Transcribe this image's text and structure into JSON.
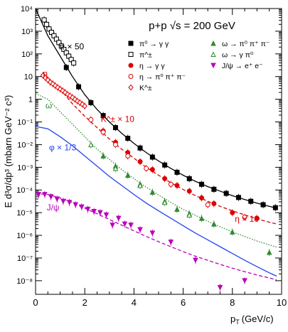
{
  "chart_data": {
    "type": "scatter",
    "title": "p+p √s = 200 GeV",
    "xlabel": "p_T (GeV/c)",
    "xlabel_main": "p",
    "xlabel_sub": "T",
    "xlabel_unit": "(GeV/c)",
    "ylabel": "E d³σ/dp³ (mbarn GeV⁻² c³)",
    "xlim": [
      0,
      10
    ],
    "ylim_log10": [
      -8.6,
      4
    ],
    "yscale": "log",
    "grid": false,
    "legend_position": "top-right",
    "x_ticks": [
      0,
      2,
      4,
      6,
      8,
      10
    ],
    "x_tick_labels": [
      "0",
      "2",
      "4",
      "6",
      "8",
      "10"
    ],
    "y_ticks_log10": [
      -8,
      -7,
      -6,
      -5,
      -4,
      -3,
      -2,
      -1,
      0,
      1,
      2,
      3,
      4
    ],
    "y_tick_labels": [
      "10⁻⁸",
      "10⁻⁷",
      "10⁻⁶",
      "10⁻⁵",
      "10⁻⁴",
      "10⁻³",
      "10⁻²",
      "10⁻¹",
      "1",
      "10",
      "10²",
      "10³",
      "10⁴"
    ],
    "legend": [
      {
        "label": "π⁰ → γ γ",
        "color": "#000000",
        "marker": "square-filled"
      },
      {
        "label": "π^±",
        "color": "#000000",
        "marker": "square-open"
      },
      {
        "label": "η → γ γ",
        "color": "#dd0000",
        "marker": "circle-filled"
      },
      {
        "label": "η → π⁰ π⁺ π⁻",
        "color": "#dd0000",
        "marker": "circle-open"
      },
      {
        "label": "K^±",
        "color": "#dd0000",
        "marker": "diamond-open"
      },
      {
        "label": "ω → π⁰ π⁺ π⁻",
        "color": "#2e8b2e",
        "marker": "triangle-filled"
      },
      {
        "label": "ω → γ π⁰",
        "color": "#2e8b2e",
        "marker": "triangle-open"
      },
      {
        "label": "J/ψ → e⁺ e⁻",
        "color": "#bb00bb",
        "marker": "triangle-down-filled"
      }
    ],
    "annotations": [
      {
        "text": "π × 50",
        "color": "#000000",
        "x": 0.95,
        "y_log10": 2.2
      },
      {
        "text": "η",
        "color": "#dd0000",
        "x": 0.3,
        "y_log10": 1.0
      },
      {
        "text": "ω",
        "color": "#2e8b2e",
        "x": 0.4,
        "y_log10": -0.4
      },
      {
        "text": "K^± × 10",
        "color": "#dd0000",
        "x": 2.65,
        "y_log10": -1.0
      },
      {
        "text": "φ × 1/3",
        "color": "#2244ee",
        "x": 0.55,
        "y_log10": -2.25
      },
      {
        "text": "J/ψ",
        "color": "#bb00bb",
        "x": 0.45,
        "y_log10": -4.9
      },
      {
        "text": "η × 10",
        "color": "#dd0000",
        "x": 8.1,
        "y_log10": -5.4
      }
    ],
    "curves": [
      {
        "name": "pi",
        "color": "#000000",
        "style": "solid",
        "x": [
          0,
          0.5,
          1,
          1.5,
          2,
          2.5,
          3,
          3.5,
          4,
          4.5,
          5,
          5.5,
          6,
          6.5,
          7,
          7.5,
          8,
          8.5,
          9,
          9.5,
          9.8
        ],
        "y_log10": [
          4,
          2.8,
          1.9,
          1.0,
          0.2,
          -0.45,
          -1.0,
          -1.5,
          -1.95,
          -2.35,
          -2.72,
          -3.05,
          -3.35,
          -3.62,
          -3.85,
          -4.05,
          -4.25,
          -4.42,
          -4.58,
          -4.72,
          -4.8
        ]
      },
      {
        "name": "eta",
        "color": "#dd0000",
        "style": "dashed",
        "x": [
          0.3,
          1,
          1.5,
          2,
          2.5,
          3,
          3.5,
          4,
          4.5,
          5,
          5.5,
          6,
          6.5,
          7,
          7.5,
          8,
          8.5,
          9,
          9.5,
          9.8
        ],
        "y_log10": [
          1.15,
          0.45,
          -0.2,
          -0.75,
          -1.25,
          -1.75,
          -2.2,
          -2.6,
          -3.0,
          -3.35,
          -3.68,
          -3.98,
          -4.25,
          -4.5,
          -4.72,
          -4.92,
          -5.1,
          -5.27,
          -5.42,
          -5.5
        ]
      },
      {
        "name": "omega",
        "color": "#2e8b2e",
        "style": "dotted",
        "x": [
          0,
          0.5,
          1,
          1.5,
          2,
          2.5,
          3,
          3.5,
          4,
          4.5,
          5,
          5.5,
          6,
          6.5,
          7,
          7.5,
          8,
          8.5,
          9,
          9.5,
          9.8
        ],
        "y_log10": [
          0.25,
          0.0,
          -0.55,
          -1.1,
          -1.65,
          -2.2,
          -2.65,
          -3.1,
          -3.5,
          -3.88,
          -4.22,
          -4.55,
          -4.85,
          -5.12,
          -5.38,
          -5.62,
          -5.85,
          -6.05,
          -6.25,
          -6.42,
          -6.52
        ]
      },
      {
        "name": "phi",
        "color": "#2244ee",
        "style": "solid",
        "x": [
          0,
          0.5,
          1,
          1.5,
          2,
          2.5,
          3,
          3.5,
          4,
          4.5,
          5,
          5.5,
          6,
          6.5,
          7,
          7.5,
          8,
          8.5,
          9,
          9.5,
          9.8
        ],
        "y_log10": [
          -1.2,
          -1.3,
          -1.65,
          -2.05,
          -2.5,
          -2.95,
          -3.4,
          -3.8,
          -4.2,
          -4.58,
          -4.92,
          -5.25,
          -5.58,
          -5.9,
          -6.2,
          -6.5,
          -6.8,
          -7.1,
          -7.38,
          -7.65,
          -7.8
        ]
      },
      {
        "name": "jpsi",
        "color": "#bb00bb",
        "style": "dashed",
        "x": [
          0,
          0.5,
          1,
          1.5,
          2,
          2.5,
          3,
          3.5,
          4,
          4.5,
          5,
          5.5,
          6,
          6.5,
          7,
          7.5,
          8,
          8.5,
          9,
          9.5,
          9.8
        ],
        "y_log10": [
          -4.15,
          -4.2,
          -4.35,
          -4.55,
          -4.8,
          -5.05,
          -5.3,
          -5.55,
          -5.8,
          -6.05,
          -6.28,
          -6.5,
          -6.72,
          -6.92,
          -7.1,
          -7.28,
          -7.45,
          -7.6,
          -7.75,
          -7.88,
          -7.96
        ]
      }
    ],
    "series": [
      {
        "name": "π⁰ → γ γ",
        "color": "#000000",
        "marker": "square-filled",
        "x": [
          1.25,
          1.75,
          2.25,
          2.75,
          3.25,
          3.75,
          4.25,
          4.75,
          5.25,
          5.75,
          6.25,
          6.75,
          7.25,
          7.75,
          8.25,
          8.75,
          9.25,
          9.75
        ],
        "y_log10": [
          1.4,
          0.55,
          -0.15,
          -0.72,
          -1.25,
          -1.72,
          -2.15,
          -2.55,
          -2.9,
          -3.22,
          -3.5,
          -3.75,
          -3.97,
          -4.15,
          -4.33,
          -4.5,
          -4.65,
          -4.78
        ]
      },
      {
        "name": "π^±",
        "color": "#000000",
        "marker": "square-open",
        "x": [
          0.35,
          0.45,
          0.55,
          0.65,
          0.75,
          0.85,
          0.95,
          1.05,
          1.15,
          1.25,
          1.35,
          1.45,
          1.55
        ],
        "y_log10": [
          3.5,
          3.3,
          3.1,
          2.95,
          2.8,
          2.65,
          2.5,
          2.35,
          2.2,
          2.05,
          1.9,
          1.75,
          1.6
        ]
      },
      {
        "name": "η → γ γ",
        "color": "#dd0000",
        "marker": "circle-filled",
        "x": [
          2.75,
          3.25,
          3.75,
          4.25,
          4.75,
          5.25,
          5.75,
          6.25,
          6.75,
          7.25,
          8.0,
          9.0
        ],
        "y_log10": [
          -1.4,
          -1.9,
          -2.35,
          -2.75,
          -3.1,
          -3.5,
          -3.8,
          -4.05,
          -4.35,
          -4.6,
          -5.0,
          -5.25
        ]
      },
      {
        "name": "η → π⁰ π⁺ π⁻",
        "color": "#dd0000",
        "marker": "circle-open",
        "x": [
          2.25,
          2.75,
          3.25,
          3.75,
          4.5,
          5.5,
          7.0,
          8.5
        ],
        "y_log10": [
          -0.9,
          -1.45,
          -2.0,
          -2.5,
          -3.05,
          -3.75,
          -4.65,
          -5.2
        ]
      },
      {
        "name": "K^±",
        "color": "#dd0000",
        "marker": "diamond-open",
        "x": [
          0.3,
          0.4,
          0.5,
          0.6,
          0.7,
          0.8,
          0.9,
          1.0,
          1.1,
          1.2,
          1.3,
          1.4,
          1.5,
          1.6,
          1.7,
          1.8,
          1.9,
          2.0
        ],
        "y_log10": [
          1.05,
          0.95,
          0.85,
          0.75,
          0.68,
          0.6,
          0.52,
          0.45,
          0.38,
          0.3,
          0.22,
          0.15,
          0.08,
          0.0,
          -0.08,
          -0.15,
          -0.22,
          -0.3
        ]
      },
      {
        "name": "ω → π⁰ π⁺ π⁻",
        "color": "#2e8b2e",
        "marker": "triangle-filled",
        "x": [
          2.75,
          3.25,
          3.75,
          4.25,
          4.75,
          5.25,
          5.75,
          6.25,
          6.75,
          7.25,
          8.0,
          9.5
        ],
        "y_log10": [
          -2.5,
          -2.95,
          -3.35,
          -3.75,
          -4.1,
          -4.5,
          -4.85,
          -5.05,
          -5.25,
          -5.5,
          -5.85,
          -6.75
        ]
      },
      {
        "name": "ω → γ π⁰",
        "color": "#2e8b2e",
        "marker": "triangle-open",
        "x": [
          2.25,
          3.25,
          4.25,
          5.25,
          6.25
        ],
        "y_log10": [
          -2.0,
          -3.05,
          -3.8,
          -4.55,
          -5.1
        ]
      },
      {
        "name": "J/ψ → e⁺ e⁻",
        "color": "#bb00bb",
        "marker": "triangle-down-filled",
        "x": [
          0.125,
          0.375,
          0.625,
          0.875,
          1.125,
          1.375,
          1.625,
          1.875,
          2.125,
          2.375,
          2.625,
          2.875,
          3.125,
          3.375,
          3.625,
          3.875,
          4.25,
          4.75,
          5.5,
          6.5,
          7.5,
          8.5
        ],
        "y_log10": [
          -4.2,
          -4.2,
          -4.3,
          -4.4,
          -4.5,
          -4.55,
          -4.65,
          -4.75,
          -4.85,
          -4.95,
          -5.0,
          -5.1,
          -5.55,
          -5.25,
          -5.5,
          -5.55,
          -5.75,
          -5.9,
          -6.3,
          -7.1,
          -8.3,
          -8.0
        ]
      }
    ]
  }
}
